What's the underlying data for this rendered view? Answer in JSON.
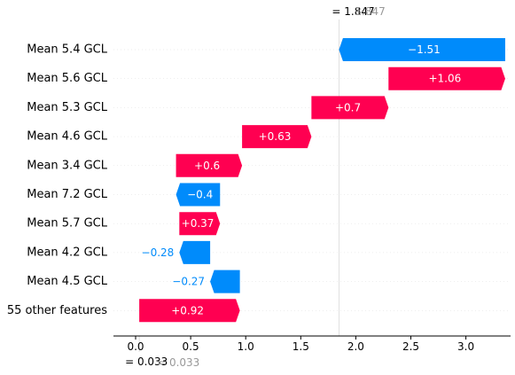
{
  "chart_data": {
    "type": "waterfall",
    "title": "",
    "xlabel": "",
    "ylabel": "",
    "xlim": [
      -0.2,
      3.38
    ],
    "x_ticks": [
      0.0,
      0.5,
      1.0,
      1.5,
      2.0,
      2.5,
      3.0
    ],
    "x_tick_labels": [
      "0.0",
      "0.5",
      "1.0",
      "1.5",
      "2.0",
      "2.5",
      "3.0"
    ],
    "base_value": 0.033,
    "base_label": "= 0.033",
    "base_label_secondary": "= 0.033",
    "output_value": 1.847,
    "output_label": "= 1.847",
    "output_label_secondary": "1.847",
    "grid": false,
    "features": [
      {
        "name": "Mean 5.4 GCL",
        "value": -1.51,
        "label": "−1.51",
        "start": 3.357,
        "end": 1.847
      },
      {
        "name": "Mean 5.6 GCL",
        "value": 1.06,
        "label": "+1.06",
        "start": 2.297,
        "end": 3.357
      },
      {
        "name": "Mean 5.3 GCL",
        "value": 0.7,
        "label": "+0.7",
        "start": 1.597,
        "end": 2.297
      },
      {
        "name": "Mean 4.6 GCL",
        "value": 0.63,
        "label": "+0.63",
        "start": 0.967,
        "end": 1.597
      },
      {
        "name": "Mean 3.4 GCL",
        "value": 0.6,
        "label": "+0.6",
        "start": 0.367,
        "end": 0.967
      },
      {
        "name": "Mean 7.2 GCL",
        "value": -0.4,
        "label": "−0.4",
        "start": 0.767,
        "end": 0.367
      },
      {
        "name": "Mean 5.7 GCL",
        "value": 0.37,
        "label": "+0.37",
        "start": 0.397,
        "end": 0.767
      },
      {
        "name": "Mean 4.2 GCL",
        "value": -0.28,
        "label": "−0.28",
        "start": 0.677,
        "end": 0.397
      },
      {
        "name": "Mean 4.5 GCL",
        "value": -0.27,
        "label": "−0.27",
        "start": 0.947,
        "end": 0.677
      },
      {
        "name": "55 other features",
        "value": 0.92,
        "label": "+0.92",
        "start": 0.033,
        "end": 0.947
      }
    ],
    "colors": {
      "positive": "#ff0051",
      "negative": "#008bfb",
      "text_on_bar": "#ffffff",
      "axis": "#000000",
      "secondary_label": "#999999",
      "guide_line": "#cccccc"
    }
  }
}
